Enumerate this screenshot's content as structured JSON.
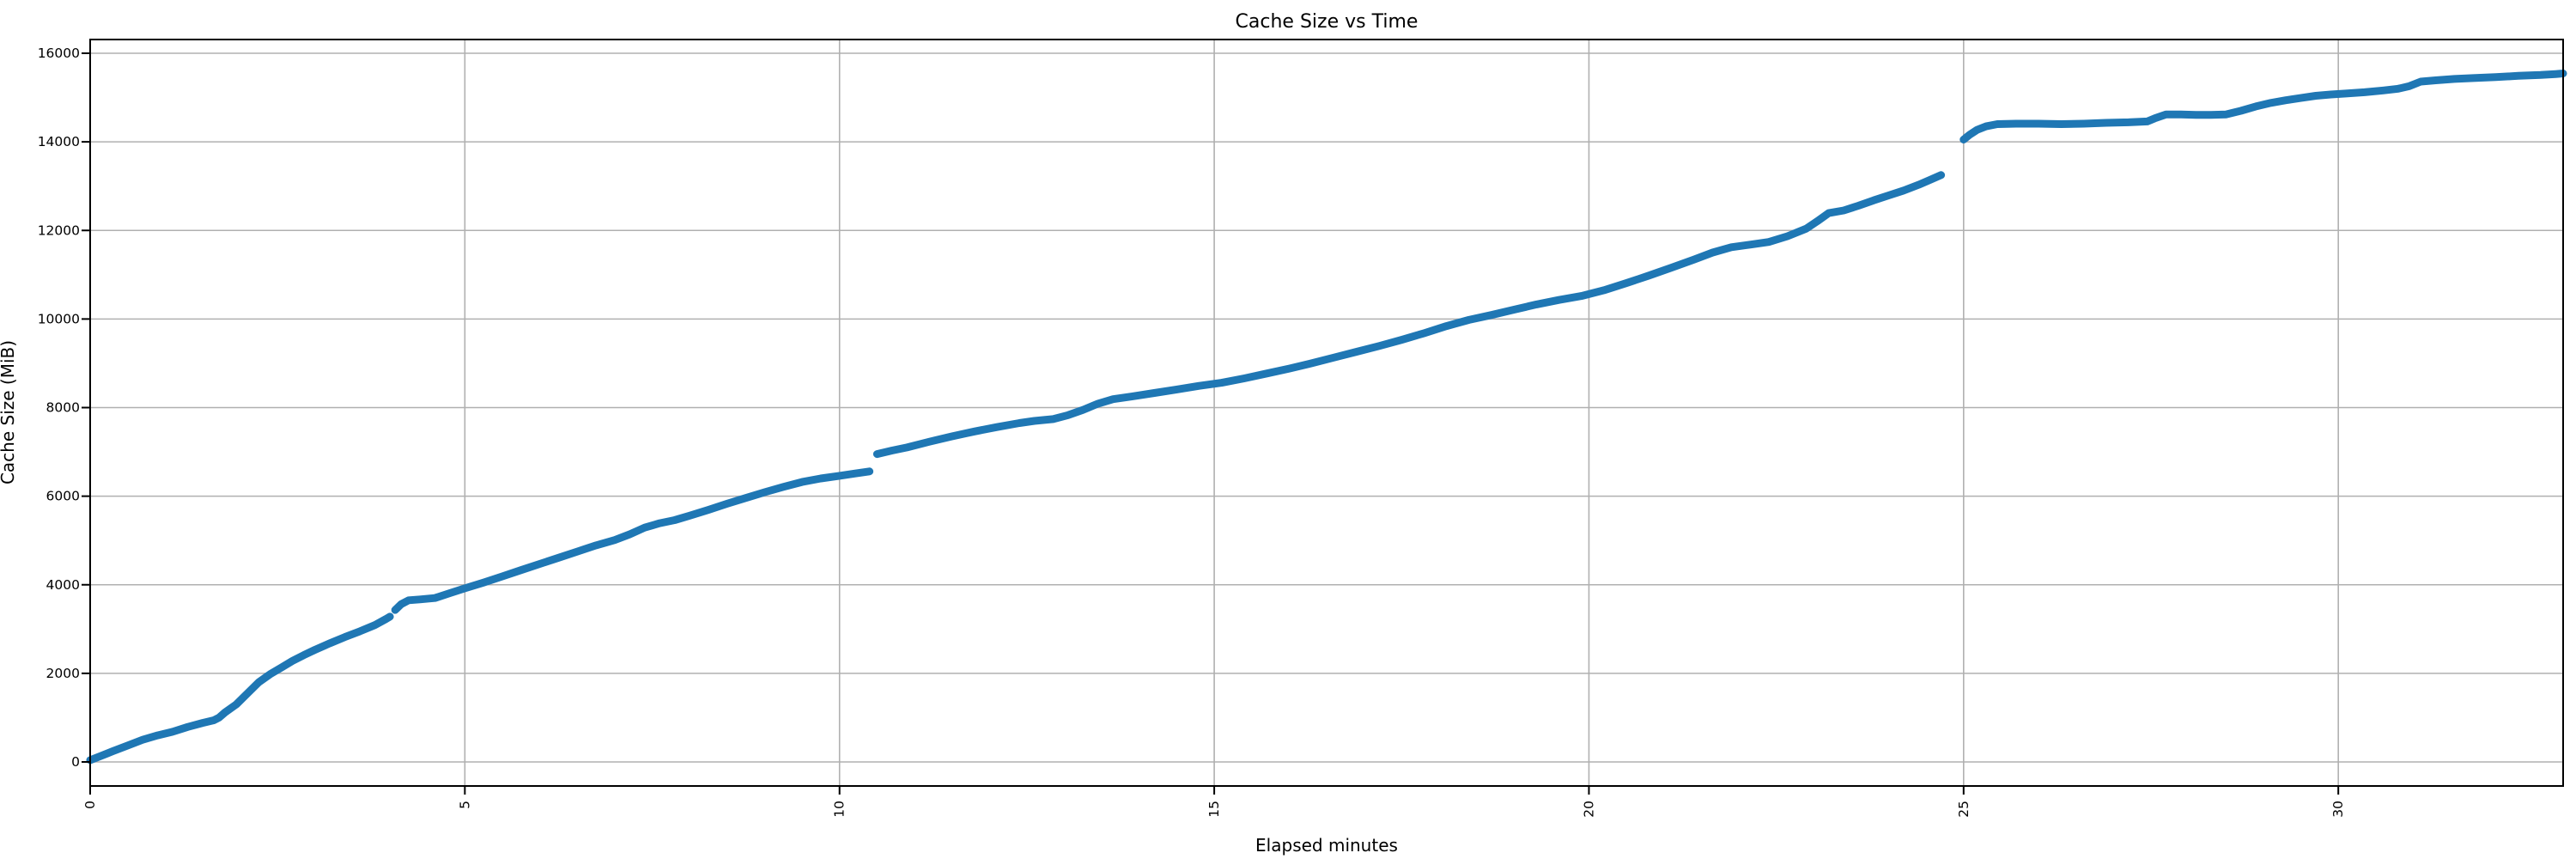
{
  "figure": {
    "background": "#ffffff"
  },
  "chart_data": {
    "type": "line",
    "title": "Cache Size vs Time",
    "xlabel": "Elapsed minutes",
    "ylabel": "Cache Size (MiB)",
    "grid": true,
    "legend": "none",
    "x_tick_rotation_deg": 90,
    "xlim": [
      0,
      33
    ],
    "ylim": [
      -550,
      16310
    ],
    "x_ticks": [
      0,
      5,
      10,
      15,
      20,
      25,
      30
    ],
    "y_ticks": [
      0,
      2000,
      4000,
      6000,
      8000,
      10000,
      12000,
      14000,
      16000
    ],
    "colors": {
      "line": "#1f77b4",
      "grid": "#b0b0b0",
      "spine": "#000000",
      "tick": "#000000"
    },
    "series": [
      {
        "name": "cache-size",
        "segments": [
          [
            [
              0.0,
              40
            ],
            [
              0.15,
              140
            ],
            [
              0.3,
              240
            ],
            [
              0.5,
              370
            ],
            [
              0.7,
              500
            ],
            [
              0.9,
              600
            ],
            [
              1.1,
              680
            ],
            [
              1.3,
              790
            ],
            [
              1.5,
              880
            ],
            [
              1.65,
              940
            ],
            [
              1.72,
              1000
            ],
            [
              1.8,
              1120
            ],
            [
              1.95,
              1300
            ],
            [
              2.1,
              1550
            ],
            [
              2.25,
              1800
            ],
            [
              2.4,
              1980
            ],
            [
              2.55,
              2130
            ],
            [
              2.7,
              2280
            ],
            [
              2.85,
              2410
            ],
            [
              3.0,
              2530
            ],
            [
              3.2,
              2680
            ],
            [
              3.4,
              2820
            ],
            [
              3.6,
              2950
            ],
            [
              3.8,
              3090
            ],
            [
              3.95,
              3230
            ],
            [
              4.0,
              3280
            ]
          ],
          [
            [
              4.07,
              3430
            ],
            [
              4.15,
              3560
            ],
            [
              4.25,
              3650
            ],
            [
              4.4,
              3670
            ],
            [
              4.6,
              3700
            ],
            [
              4.8,
              3810
            ],
            [
              5.0,
              3920
            ],
            [
              5.25,
              4050
            ],
            [
              5.5,
              4190
            ],
            [
              5.75,
              4330
            ],
            [
              6.0,
              4470
            ],
            [
              6.25,
              4610
            ],
            [
              6.5,
              4750
            ],
            [
              6.75,
              4890
            ],
            [
              7.0,
              5010
            ],
            [
              7.2,
              5140
            ],
            [
              7.4,
              5290
            ],
            [
              7.6,
              5390
            ],
            [
              7.8,
              5460
            ],
            [
              8.0,
              5560
            ],
            [
              8.25,
              5690
            ],
            [
              8.5,
              5830
            ],
            [
              8.75,
              5960
            ],
            [
              9.0,
              6090
            ],
            [
              9.25,
              6210
            ],
            [
              9.5,
              6320
            ],
            [
              9.75,
              6400
            ],
            [
              10.0,
              6460
            ],
            [
              10.2,
              6510
            ],
            [
              10.4,
              6560
            ]
          ],
          [
            [
              10.5,
              6950
            ],
            [
              10.7,
              7030
            ],
            [
              10.9,
              7100
            ],
            [
              11.2,
              7230
            ],
            [
              11.5,
              7350
            ],
            [
              11.8,
              7460
            ],
            [
              12.1,
              7560
            ],
            [
              12.4,
              7650
            ],
            [
              12.6,
              7700
            ],
            [
              12.85,
              7740
            ],
            [
              13.05,
              7830
            ],
            [
              13.25,
              7950
            ],
            [
              13.45,
              8090
            ],
            [
              13.65,
              8190
            ],
            [
              13.9,
              8250
            ],
            [
              14.2,
              8330
            ],
            [
              14.5,
              8410
            ],
            [
              14.8,
              8490
            ],
            [
              15.1,
              8560
            ],
            [
              15.4,
              8660
            ],
            [
              15.7,
              8770
            ],
            [
              16.0,
              8880
            ],
            [
              16.3,
              9000
            ],
            [
              16.6,
              9130
            ],
            [
              16.9,
              9260
            ],
            [
              17.2,
              9390
            ],
            [
              17.5,
              9530
            ],
            [
              17.8,
              9680
            ],
            [
              18.1,
              9840
            ],
            [
              18.4,
              9980
            ],
            [
              18.7,
              10090
            ],
            [
              19.0,
              10210
            ],
            [
              19.3,
              10330
            ],
            [
              19.6,
              10430
            ],
            [
              19.9,
              10520
            ],
            [
              20.2,
              10650
            ],
            [
              20.5,
              10810
            ],
            [
              20.8,
              10980
            ],
            [
              21.1,
              11160
            ],
            [
              21.4,
              11340
            ],
            [
              21.65,
              11500
            ],
            [
              21.9,
              11620
            ],
            [
              22.15,
              11680
            ],
            [
              22.4,
              11740
            ],
            [
              22.65,
              11870
            ],
            [
              22.9,
              12040
            ],
            [
              23.05,
              12210
            ],
            [
              23.2,
              12390
            ],
            [
              23.4,
              12450
            ],
            [
              23.6,
              12560
            ],
            [
              23.8,
              12680
            ],
            [
              24.0,
              12790
            ],
            [
              24.2,
              12900
            ],
            [
              24.4,
              13030
            ],
            [
              24.55,
              13140
            ],
            [
              24.7,
              13250
            ]
          ],
          [
            [
              25.0,
              14050
            ],
            [
              25.08,
              14160
            ],
            [
              25.18,
              14270
            ],
            [
              25.3,
              14350
            ],
            [
              25.45,
              14400
            ],
            [
              25.7,
              14410
            ],
            [
              26.0,
              14410
            ],
            [
              26.3,
              14400
            ],
            [
              26.6,
              14410
            ],
            [
              26.9,
              14430
            ],
            [
              27.2,
              14440
            ],
            [
              27.45,
              14460
            ],
            [
              27.55,
              14530
            ],
            [
              27.7,
              14620
            ],
            [
              27.9,
              14620
            ],
            [
              28.1,
              14610
            ],
            [
              28.3,
              14610
            ],
            [
              28.5,
              14620
            ],
            [
              28.7,
              14700
            ],
            [
              28.9,
              14800
            ],
            [
              29.1,
              14880
            ],
            [
              29.3,
              14940
            ],
            [
              29.5,
              14990
            ],
            [
              29.7,
              15040
            ],
            [
              29.9,
              15070
            ],
            [
              30.1,
              15090
            ],
            [
              30.35,
              15120
            ],
            [
              30.6,
              15160
            ],
            [
              30.8,
              15200
            ],
            [
              30.95,
              15260
            ],
            [
              31.1,
              15360
            ],
            [
              31.3,
              15390
            ],
            [
              31.55,
              15420
            ],
            [
              31.8,
              15440
            ],
            [
              32.1,
              15460
            ],
            [
              32.4,
              15490
            ],
            [
              32.7,
              15510
            ],
            [
              32.9,
              15530
            ],
            [
              33.0,
              15545
            ]
          ]
        ]
      }
    ]
  }
}
